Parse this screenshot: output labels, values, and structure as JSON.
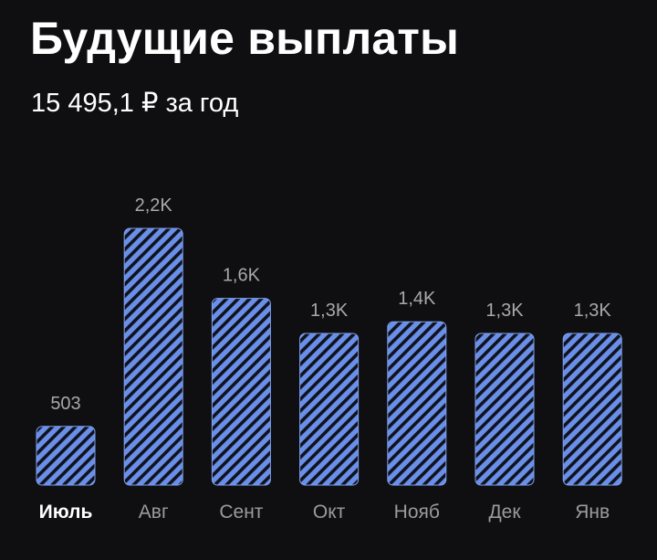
{
  "header": {
    "title": "Будущие выплаты",
    "subtitle": "15 495,1 ₽ за год"
  },
  "colors": {
    "background": "#0f0f11",
    "bar_fill": "#6a8fe8",
    "bar_stripe": "#10121c",
    "bar_border": "#7fa2f2"
  },
  "chart_data": {
    "type": "bar",
    "categories": [
      "Июль",
      "Авг",
      "Сент",
      "Окт",
      "Нояб",
      "Дек",
      "Янв"
    ],
    "values": [
      503,
      2200,
      1600,
      1300,
      1400,
      1300,
      1300
    ],
    "data_labels": [
      "503",
      "2,2K",
      "1,6K",
      "1,3K",
      "1,4K",
      "1,3K",
      "1,3K"
    ],
    "selected_category": "Июль",
    "grid": false,
    "legend": "none"
  }
}
